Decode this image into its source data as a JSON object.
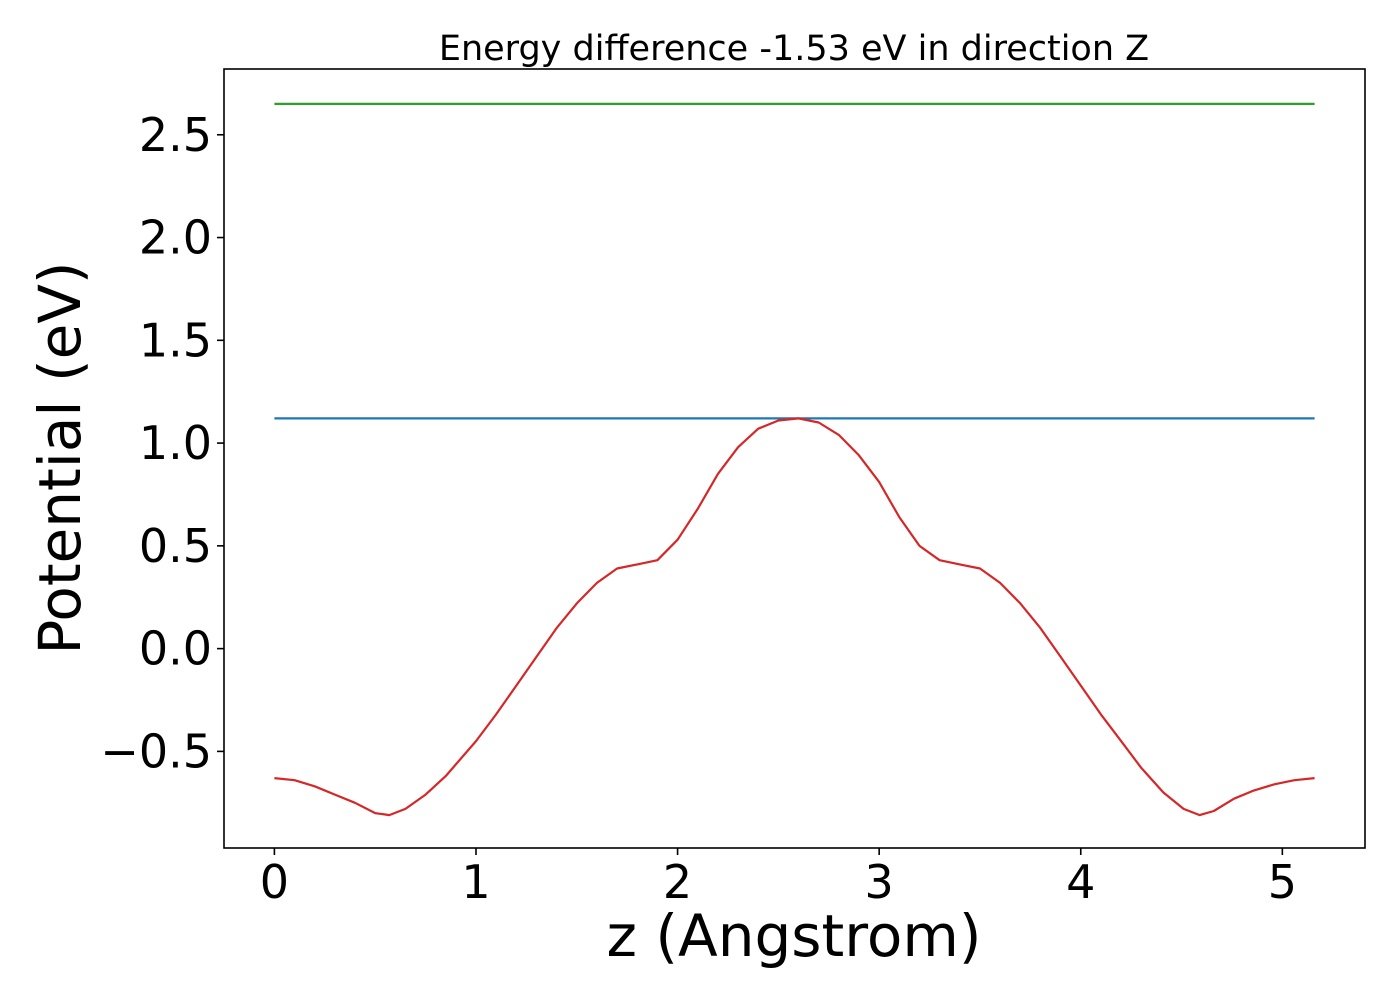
{
  "chart_data": {
    "type": "line",
    "title": "Energy difference -1.53 eV in direction Z",
    "xlabel": "z (Angstrom)",
    "ylabel": "Potential (eV)",
    "xlim": [
      -0.25,
      5.41
    ],
    "ylim": [
      -0.97,
      2.82
    ],
    "x_ticks": [
      0,
      1,
      2,
      3,
      4,
      5
    ],
    "x_tick_labels": [
      "0",
      "1",
      "2",
      "3",
      "4",
      "5"
    ],
    "y_ticks": [
      -0.5,
      0.0,
      0.5,
      1.0,
      1.5,
      2.0,
      2.5
    ],
    "y_tick_labels": [
      "−0.5",
      "0.0",
      "0.5",
      "1.0",
      "1.5",
      "2.0",
      "2.5"
    ],
    "grid": false,
    "series": [
      {
        "color": "#2ca02c",
        "x": [
          0,
          5.16
        ],
        "y": [
          2.65,
          2.65
        ]
      },
      {
        "color": "#1f77b4",
        "x": [
          0,
          5.16
        ],
        "y": [
          1.12,
          1.12
        ]
      },
      {
        "color": "#d62728",
        "x": [
          0,
          0.1,
          0.2,
          0.3,
          0.4,
          0.5,
          0.57,
          0.65,
          0.75,
          0.85,
          1.0,
          1.1,
          1.2,
          1.3,
          1.4,
          1.5,
          1.6,
          1.7,
          1.8,
          1.9,
          2.0,
          2.1,
          2.2,
          2.3,
          2.4,
          2.5,
          2.6,
          2.7,
          2.8,
          2.9,
          3.0,
          3.1,
          3.2,
          3.3,
          3.4,
          3.5,
          3.6,
          3.7,
          3.8,
          3.9,
          4.0,
          4.1,
          4.2,
          4.3,
          4.41,
          4.51,
          4.59,
          4.66,
          4.76,
          4.86,
          4.96,
          5.06,
          5.16
        ],
        "y": [
          -0.63,
          -0.64,
          -0.67,
          -0.71,
          -0.75,
          -0.8,
          -0.81,
          -0.78,
          -0.71,
          -0.62,
          -0.45,
          -0.32,
          -0.18,
          -0.04,
          0.1,
          0.22,
          0.32,
          0.39,
          0.41,
          0.43,
          0.53,
          0.68,
          0.85,
          0.98,
          1.07,
          1.11,
          1.12,
          1.1,
          1.04,
          0.94,
          0.81,
          0.64,
          0.5,
          0.43,
          0.41,
          0.39,
          0.32,
          0.22,
          0.1,
          -0.04,
          -0.18,
          -0.32,
          -0.45,
          -0.58,
          -0.7,
          -0.78,
          -0.81,
          -0.79,
          -0.73,
          -0.69,
          -0.66,
          -0.64,
          -0.63
        ]
      }
    ]
  }
}
